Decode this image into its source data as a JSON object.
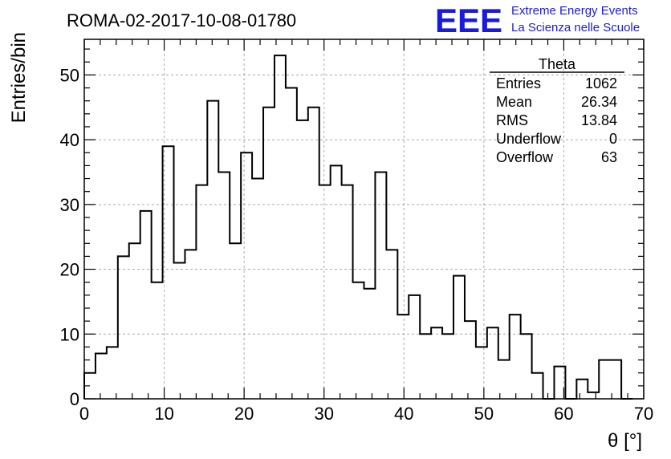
{
  "chart_data": {
    "type": "histogram",
    "title": "ROMA-02-2017-10-08-01780",
    "xlabel": "θ [°]",
    "ylabel": "Entries/bin",
    "xlim": [
      0,
      70
    ],
    "ylim": [
      0,
      55.5
    ],
    "grid": true,
    "bin_width": 1.4,
    "bin_start": 0,
    "values": [
      4,
      7,
      8,
      22,
      24,
      29,
      18,
      39,
      21,
      23,
      33,
      46,
      35,
      24,
      38,
      34,
      45,
      53,
      48,
      43,
      45,
      33,
      36,
      33,
      18,
      17,
      35,
      23,
      13,
      16,
      10,
      11,
      10,
      19,
      12,
      8,
      11,
      6,
      13,
      10,
      4,
      0,
      5,
      0,
      3,
      1,
      6,
      6,
      0
    ],
    "x_ticks": [
      "0",
      "10",
      "20",
      "30",
      "40",
      "50",
      "60",
      "70"
    ],
    "y_ticks": [
      "0",
      "10",
      "20",
      "30",
      "40",
      "50"
    ],
    "stats_box": {
      "title": "Theta",
      "rows": [
        {
          "label": "Entries",
          "value": "1062"
        },
        {
          "label": "Mean",
          "value": "26.34"
        },
        {
          "label": "RMS",
          "value": "13.84"
        },
        {
          "label": "Underflow",
          "value": "0"
        },
        {
          "label": "Overflow",
          "value": "63"
        }
      ]
    }
  },
  "logo": {
    "mark": "EEE",
    "line1": "Extreme Energy Events",
    "line2": "La Scienza nelle Scuole",
    "color": "#1a1adc"
  }
}
